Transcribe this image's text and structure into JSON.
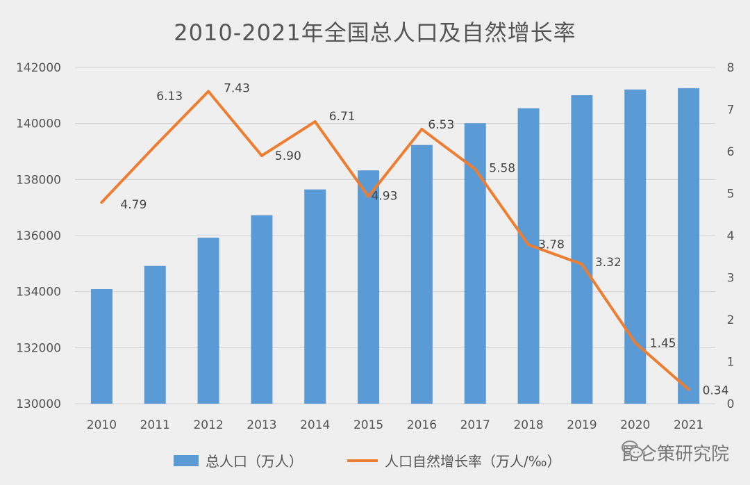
{
  "chart_data": {
    "type": "bar+line",
    "title": "2010-2021年全国总人口及自然增长率",
    "categories": [
      "2010",
      "2011",
      "2012",
      "2013",
      "2014",
      "2015",
      "2016",
      "2017",
      "2018",
      "2019",
      "2020",
      "2021"
    ],
    "series": [
      {
        "name": "总人口（万人）",
        "type": "bar",
        "axis": "left",
        "color": "#5b9bd5",
        "values": [
          134091,
          134916,
          135922,
          136726,
          137646,
          138326,
          139232,
          140011,
          140541,
          141008,
          141212,
          141260
        ]
      },
      {
        "name": "人口自然增长率（万人/‰）",
        "type": "line",
        "axis": "right",
        "color": "#ed7d31",
        "values": [
          4.79,
          6.13,
          7.43,
          5.9,
          6.71,
          4.93,
          6.53,
          5.58,
          3.78,
          3.32,
          1.45,
          0.34
        ],
        "labels": [
          "4.79",
          "6.13",
          "7.43",
          "5.90",
          "6.71",
          "4.93",
          "6.53",
          "5.58",
          "3.78",
          "3.32",
          "1.45",
          "0.34"
        ]
      }
    ],
    "y_left": {
      "min": 130000,
      "max": 142000,
      "ticks": [
        "130000",
        "132000",
        "134000",
        "136000",
        "138000",
        "140000",
        "142000"
      ]
    },
    "y_right": {
      "min": 0,
      "max": 8,
      "ticks": [
        "0",
        "1",
        "2",
        "3",
        "4",
        "5",
        "6",
        "7",
        "8"
      ]
    },
    "grid": true,
    "legend_position": "bottom"
  },
  "watermark": {
    "text": "昆仑策研究院",
    "icon": "wechat-icon"
  }
}
